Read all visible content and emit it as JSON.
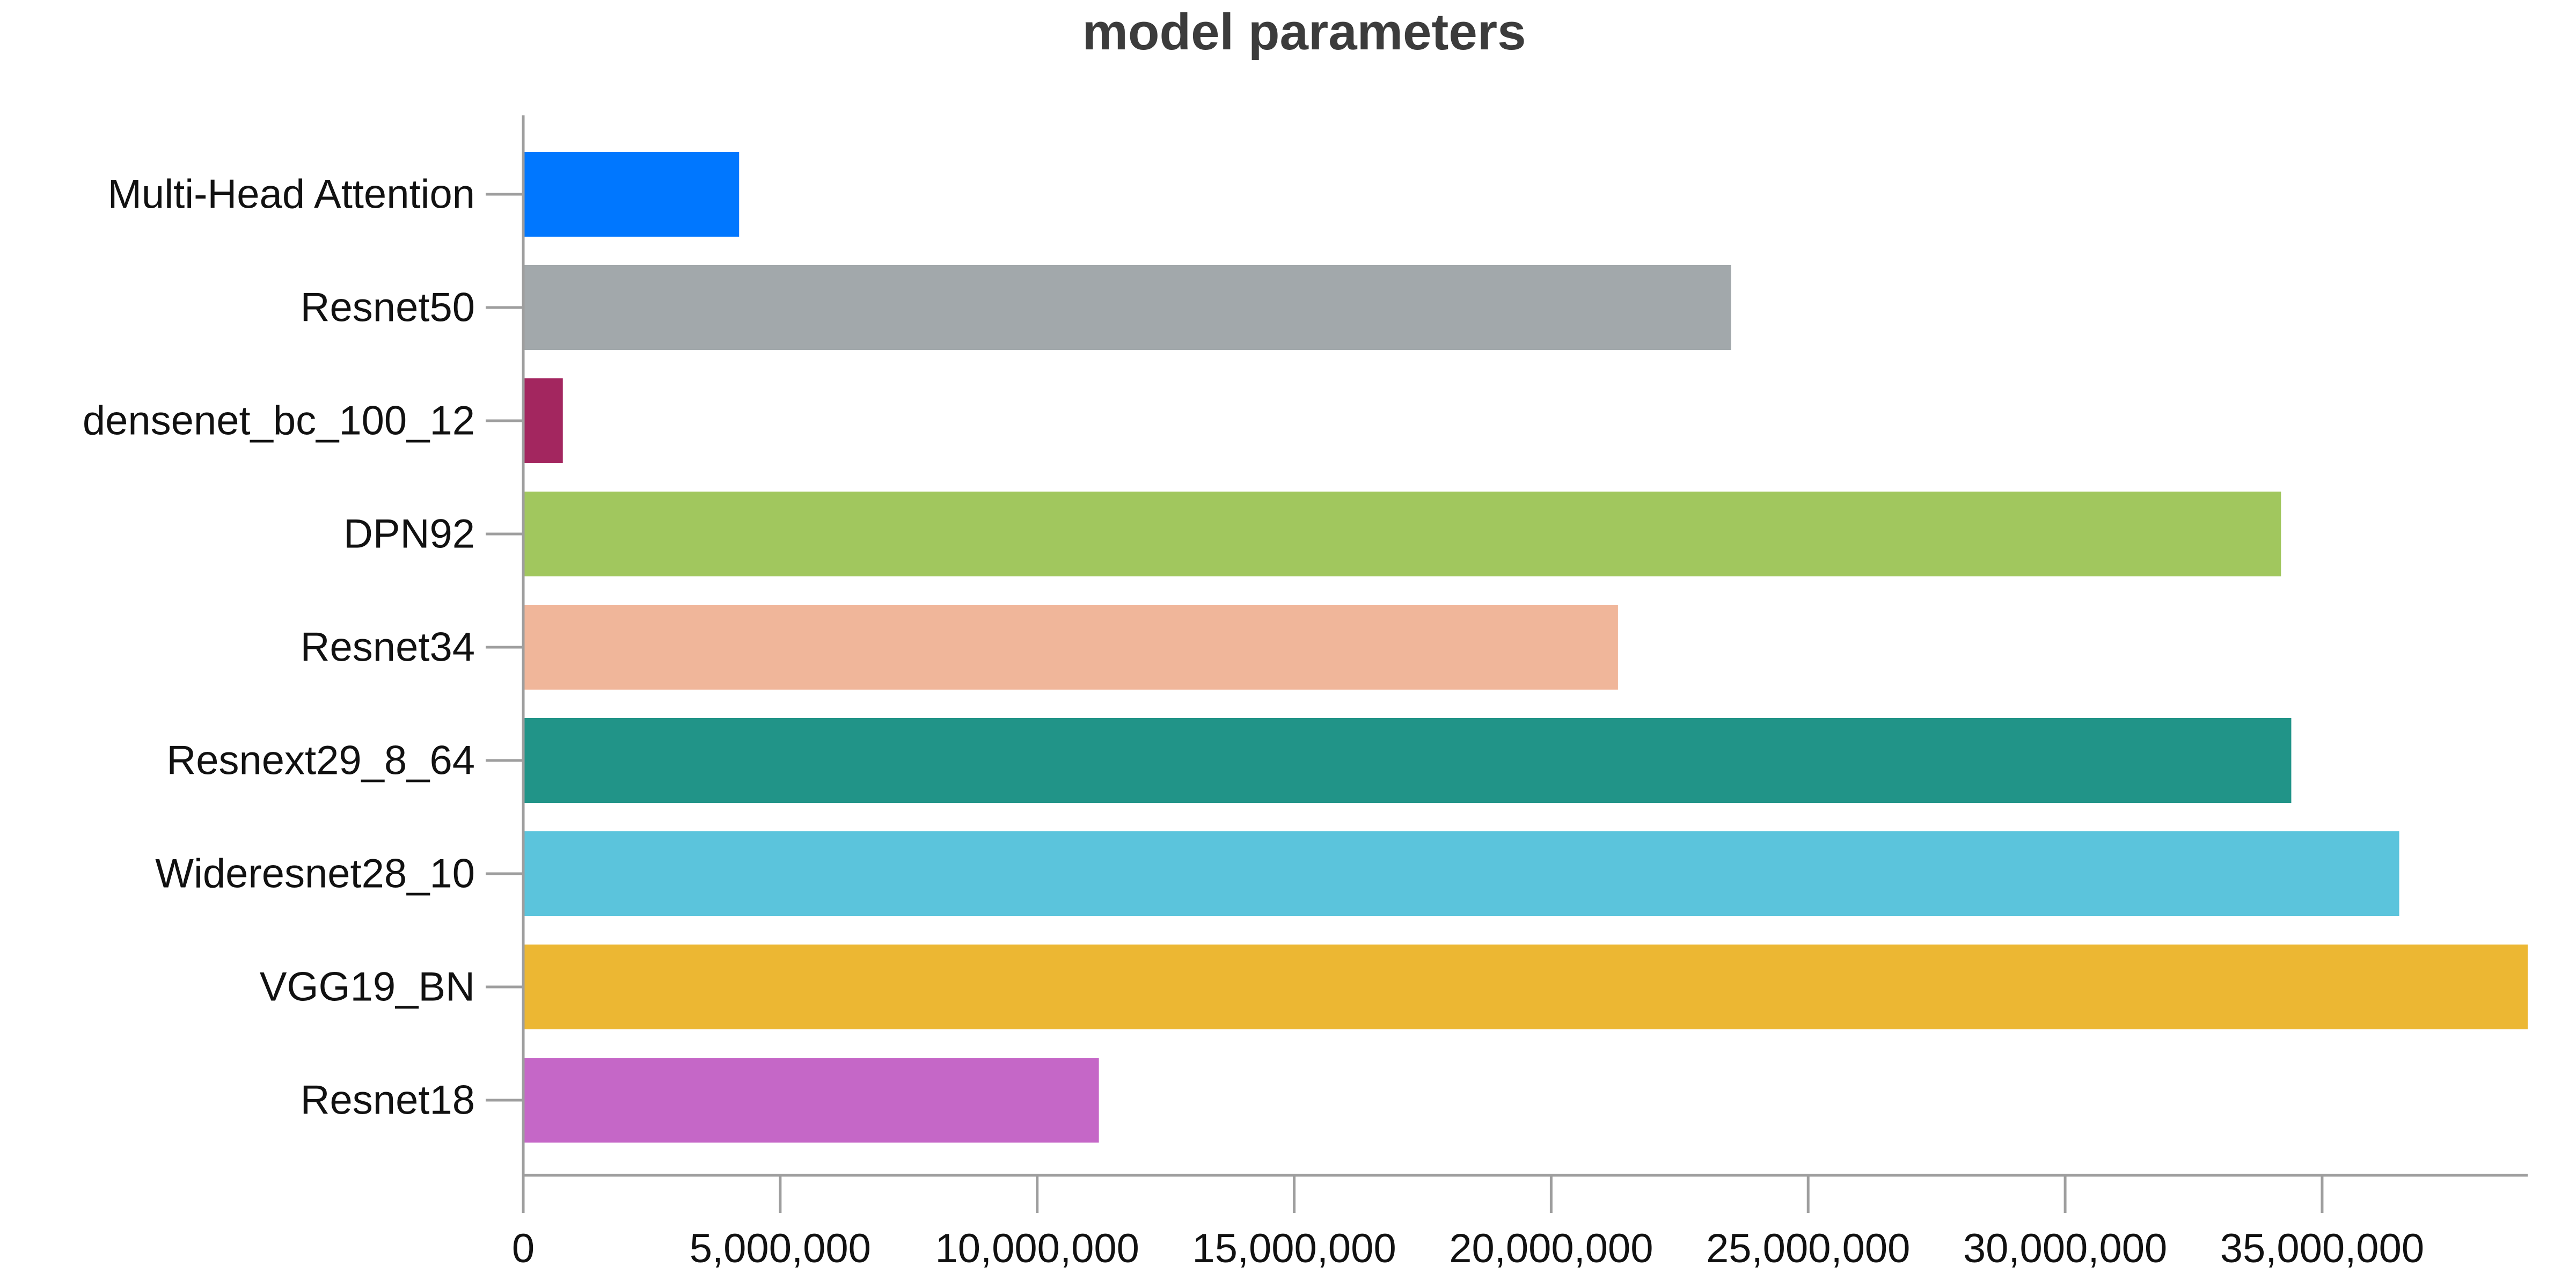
{
  "chart_data": {
    "type": "bar",
    "orientation": "horizontal",
    "title": "model parameters",
    "xlabel": "",
    "ylabel": "",
    "grid": false,
    "xlim": [
      0,
      39000000
    ],
    "x_ticks": [
      0,
      5000000,
      10000000,
      15000000,
      20000000,
      25000000,
      30000000,
      35000000
    ],
    "x_tick_labels": [
      "0",
      "5,000,000",
      "10,000,000",
      "15,000,000",
      "20,000,000",
      "25,000,000",
      "30,000,000",
      "35,000,000"
    ],
    "categories": [
      "Multi-Head Attention",
      "Resnet50",
      "densenet_bc_100_12",
      "DPN92",
      "Resnet34",
      "Resnext29_8_64",
      "Wideresnet28_10",
      "VGG19_BN",
      "Resnet18"
    ],
    "values": [
      4200000,
      23500000,
      770000,
      34200000,
      21300000,
      34400000,
      36500000,
      39000000,
      11200000
    ],
    "colors": [
      "#0077ff",
      "#a2a8ab",
      "#a3265f",
      "#a1c75e",
      "#f0b69a",
      "#219488",
      "#5bc4dc",
      "#ecb733",
      "#c567c7"
    ]
  }
}
